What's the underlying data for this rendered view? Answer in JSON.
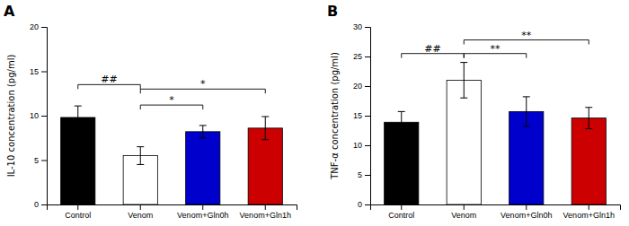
{
  "chart_data": [
    {
      "type": "bar",
      "title": "A",
      "categories": [
        "Control",
        "Venom",
        "Venom+Gln0h",
        "Venom+Gln1h"
      ],
      "values": [
        9.8,
        5.5,
        8.2,
        8.6
      ],
      "errors": [
        1.3,
        1.0,
        0.7,
        1.3
      ],
      "colors": [
        "#000000",
        "#ffffff",
        "#0000cc",
        "#cc0000"
      ],
      "ylabel": "IL-10 concentration (pg/ml)",
      "ylim": [
        0,
        20
      ],
      "yticks": [
        0,
        5,
        10,
        15,
        20
      ],
      "grid": false,
      "annotations": [
        {
          "text": "##",
          "from": "Control",
          "to": "Venom",
          "y": 13.5
        },
        {
          "text": "*",
          "from": "Venom",
          "to": "Venom+Gln0h",
          "y": 11.2
        },
        {
          "text": "*",
          "from": "Venom",
          "to": "Venom+Gln1h",
          "y": 13.0
        }
      ]
    },
    {
      "type": "bar",
      "title": "B",
      "categories": [
        "Control",
        "Venom",
        "Venom+Gln0h",
        "Venom+Gln1h"
      ],
      "values": [
        13.9,
        21.0,
        15.7,
        14.6
      ],
      "errors": [
        1.8,
        3.0,
        2.5,
        1.8
      ],
      "colors": [
        "#000000",
        "#ffffff",
        "#0000cc",
        "#cc0000"
      ],
      "ylabel": "TNF-α concentration (pg/ml)",
      "ylim": [
        0,
        30
      ],
      "yticks": [
        0,
        5,
        10,
        15,
        20,
        25,
        30
      ],
      "grid": false,
      "annotations": [
        {
          "text": "##",
          "from": "Control",
          "to": "Venom",
          "y": 25.5
        },
        {
          "text": "**",
          "from": "Venom",
          "to": "Venom+Gln0h",
          "y": 25.5
        },
        {
          "text": "**",
          "from": "Venom",
          "to": "Venom+Gln1h",
          "y": 27.8
        }
      ]
    }
  ]
}
